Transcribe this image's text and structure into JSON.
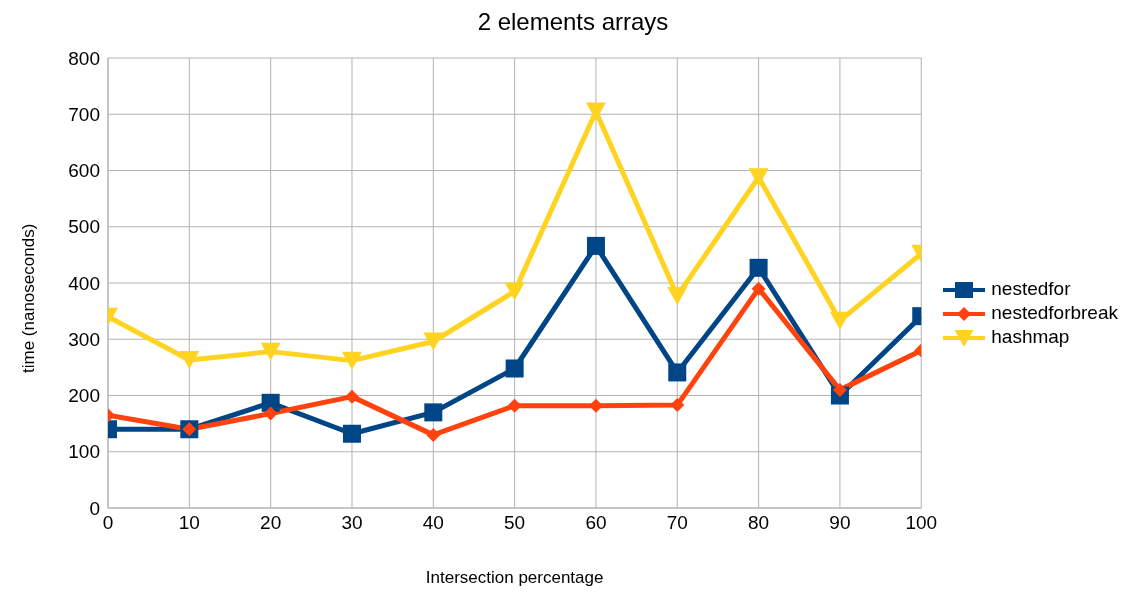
{
  "chart_data": {
    "type": "line",
    "title": "2 elements arrays",
    "xlabel": "Intersection percentage",
    "ylabel": "time (nanoseconds)",
    "x": [
      0,
      10,
      20,
      30,
      40,
      50,
      60,
      70,
      80,
      90,
      100
    ],
    "xlim": [
      0,
      100
    ],
    "xticks": [
      0,
      10,
      20,
      30,
      40,
      50,
      60,
      70,
      80,
      90,
      100
    ],
    "ylim": [
      0,
      800
    ],
    "yticks": [
      0,
      100,
      200,
      300,
      400,
      500,
      600,
      700,
      800
    ],
    "grid": true,
    "legend": "right",
    "series": [
      {
        "name": "nestedfor",
        "color": "#004586",
        "marker": "square",
        "values": [
          140,
          140,
          187,
          132,
          170,
          248,
          466,
          241,
          427,
          200,
          341
        ]
      },
      {
        "name": "nestedforbreak",
        "color": "#ff420e",
        "marker": "diamond",
        "values": [
          165,
          140,
          168,
          198,
          130,
          182,
          182,
          183,
          390,
          210,
          280
        ]
      },
      {
        "name": "hashmap",
        "color": "#ffd320",
        "marker": "triangle",
        "values": [
          340,
          263,
          278,
          262,
          296,
          385,
          705,
          377,
          588,
          333,
          452
        ]
      }
    ]
  }
}
